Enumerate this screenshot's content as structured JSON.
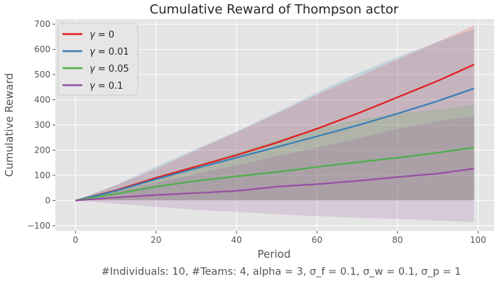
{
  "chart_data": {
    "type": "line",
    "title": "Cumulative Reward of Thompson actor",
    "xlabel": "Period",
    "ylabel": "Cumulative Reward",
    "caption": "#Individuals: 10,  #Teams: 4,  alpha = 3,  σ_f = 0.1,  σ_w = 0.1,  σ_p = 1",
    "xlim": [
      -5,
      104
    ],
    "ylim": [
      -120,
      720
    ],
    "xticks": [
      0,
      20,
      40,
      60,
      80,
      100
    ],
    "yticks": [
      -100,
      0,
      100,
      200,
      300,
      400,
      500,
      600,
      700
    ],
    "xtick_labels": [
      "0",
      "20",
      "40",
      "60",
      "80",
      "100"
    ],
    "ytick_labels": [
      "−100",
      "0",
      "100",
      "200",
      "300",
      "400",
      "500",
      "600",
      "700"
    ],
    "grid": true,
    "legend_position": "top-left",
    "x": [
      0,
      10,
      20,
      30,
      40,
      50,
      60,
      70,
      80,
      90,
      99
    ],
    "series": [
      {
        "name": "γ =  0",
        "legend_gamma": "γ",
        "legend_value": "=  0",
        "color": "#e41a1c",
        "values": [
          0,
          40,
          90,
          135,
          180,
          230,
          285,
          345,
          410,
          475,
          540
        ],
        "lower": [
          0,
          0,
          0,
          0,
          0,
          0,
          0,
          0,
          0,
          0,
          0
        ],
        "upper": [
          0,
          60,
          125,
          200,
          270,
          345,
          420,
          490,
          560,
          630,
          695
        ]
      },
      {
        "name": "γ =  0.01",
        "legend_gamma": "γ",
        "legend_value": "=  0.01",
        "color": "#377eb8",
        "values": [
          0,
          38,
          85,
          128,
          170,
          212,
          255,
          298,
          345,
          395,
          445
        ],
        "lower": [
          0,
          0,
          0,
          0,
          0,
          0,
          0,
          0,
          0,
          0,
          0
        ],
        "upper": [
          0,
          62,
          135,
          205,
          275,
          350,
          430,
          505,
          570,
          630,
          680
        ]
      },
      {
        "name": "γ =  0.05",
        "legend_gamma": "γ",
        "legend_value": "=  0.05",
        "color": "#4daf4a",
        "values": [
          0,
          27,
          55,
          78,
          96,
          113,
          133,
          152,
          170,
          190,
          210
        ],
        "lower": [
          0,
          0,
          0,
          0,
          0,
          0,
          0,
          0,
          0,
          0,
          0
        ],
        "upper": [
          0,
          45,
          95,
          140,
          190,
          240,
          285,
          320,
          345,
          360,
          380
        ]
      },
      {
        "name": "γ =  0.1",
        "legend_gamma": "γ",
        "legend_value": "=  0.1",
        "color": "#984ea3",
        "values": [
          0,
          12,
          22,
          30,
          38,
          55,
          65,
          78,
          93,
          107,
          127
        ],
        "lower": [
          0,
          -12,
          -25,
          -37,
          -45,
          -55,
          -62,
          -68,
          -73,
          -80,
          -85
        ],
        "upper": [
          0,
          35,
          70,
          105,
          140,
          175,
          210,
          245,
          285,
          315,
          335
        ]
      }
    ]
  }
}
